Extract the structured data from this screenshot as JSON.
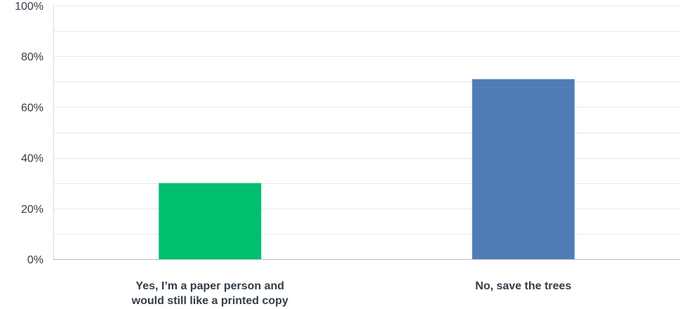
{
  "chart_data": {
    "type": "bar",
    "categories": [
      [
        "Yes, I’m a paper person and",
        "would still like a printed copy"
      ],
      [
        "No, save the trees"
      ]
    ],
    "values": [
      30,
      71
    ],
    "colors": [
      "#00bf6f",
      "#507cb6"
    ],
    "y_ticks": [
      "0%",
      "20%",
      "40%",
      "60%",
      "80%",
      "100%"
    ],
    "ylim": [
      0,
      100
    ],
    "grid": true,
    "title": "",
    "xlabel": "",
    "ylabel": ""
  }
}
